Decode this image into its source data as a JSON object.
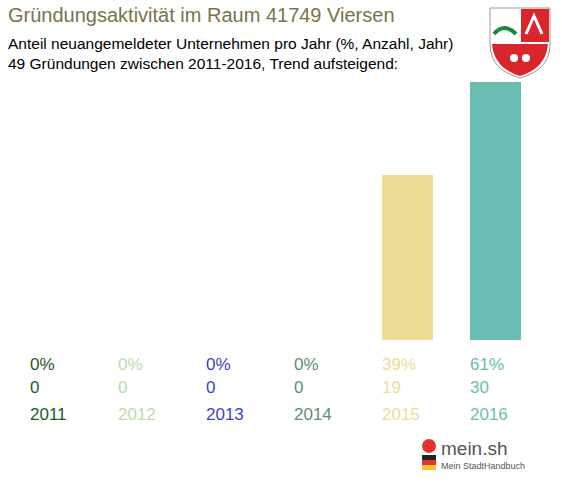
{
  "chart_data": {
    "type": "bar",
    "title": "Gründungsaktivität im Raum 41749 Viersen",
    "subtitle": [
      "Anteil neuangemeldeter Unternehmen pro Jahr (%, Anzahl, Jahr)",
      "49 Gründungen zwischen 2011-2016, Trend aufsteigend:"
    ],
    "categories": [
      "2011",
      "2012",
      "2013",
      "2014",
      "2015",
      "2016"
    ],
    "values": [
      0,
      0,
      0,
      0,
      39,
      61
    ],
    "value_labels": [
      "0%",
      "0%",
      "0%",
      "0%",
      "39%",
      "61%"
    ],
    "counts": [
      0,
      0,
      0,
      0,
      19,
      30
    ],
    "colors": [
      "#1e5a1e",
      "#b9dcaa",
      "#3f3fc6",
      "#5f8f6f",
      "#eedc98",
      "#69bdb3"
    ],
    "ylim": [
      0,
      61
    ],
    "data_labels": true,
    "tick_labels": "x",
    "grid": false,
    "source": [
      "mein.sh",
      "Mein StadtHandbuch"
    ]
  }
}
